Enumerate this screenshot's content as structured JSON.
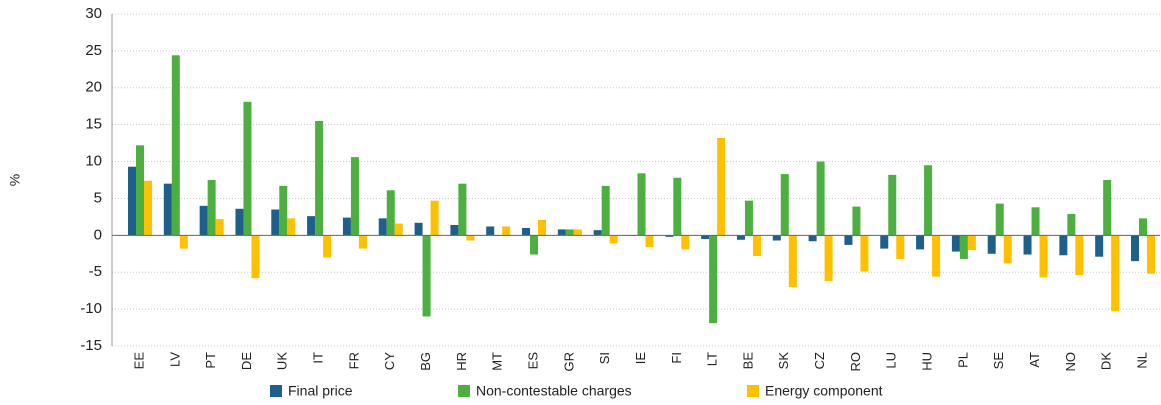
{
  "chart_data": {
    "type": "bar",
    "y_label": "%",
    "categories": [
      "EE",
      "LV",
      "PT",
      "DE",
      "UK",
      "IT",
      "FR",
      "CY",
      "BG",
      "HR",
      "MT",
      "ES",
      "GR",
      "SI",
      "IE",
      "FI",
      "LT",
      "BE",
      "SK",
      "CZ",
      "RO",
      "LU",
      "HU",
      "PL",
      "SE",
      "AT",
      "NO",
      "DK",
      "NL"
    ],
    "series": [
      {
        "name": "Final price",
        "color": "#1f5f8b",
        "values": [
          9.3,
          7.0,
          4.0,
          3.6,
          3.5,
          2.6,
          2.4,
          2.3,
          1.7,
          1.4,
          1.2,
          1.0,
          0.8,
          0.7,
          0,
          -0.2,
          -0.5,
          -0.6,
          -0.7,
          -0.8,
          -1.3,
          -1.8,
          -1.9,
          -2.2,
          -2.5,
          -2.6,
          -2.7,
          -2.9,
          -3.5
        ]
      },
      {
        "name": "Non-contestable charges",
        "color": "#4caf3f",
        "values": [
          12.2,
          24.4,
          7.5,
          18.1,
          6.7,
          15.5,
          10.6,
          6.1,
          -11.0,
          7.0,
          0,
          -2.6,
          0.8,
          6.7,
          8.4,
          7.8,
          -11.9,
          4.7,
          8.3,
          10.0,
          3.9,
          8.2,
          9.5,
          -3.2,
          4.3,
          3.8,
          2.9,
          7.5,
          2.3
        ]
      },
      {
        "name": "Energy component",
        "color": "#ffc000",
        "values": [
          7.4,
          -1.8,
          2.2,
          -5.8,
          2.3,
          -3.0,
          -1.8,
          1.6,
          4.7,
          -0.7,
          1.2,
          2.1,
          0.8,
          -1.1,
          -1.6,
          -1.9,
          13.2,
          -2.8,
          -7.0,
          -6.2,
          -4.9,
          -3.2,
          -5.6,
          -2.0,
          -3.8,
          -5.7,
          -5.4,
          -10.3,
          -5.2
        ]
      }
    ],
    "ylim": [
      -15,
      30
    ],
    "yticks": [
      -15,
      -10,
      -5,
      0,
      5,
      10,
      15,
      20,
      25,
      30
    ],
    "grid": true,
    "legend": "bottom"
  }
}
